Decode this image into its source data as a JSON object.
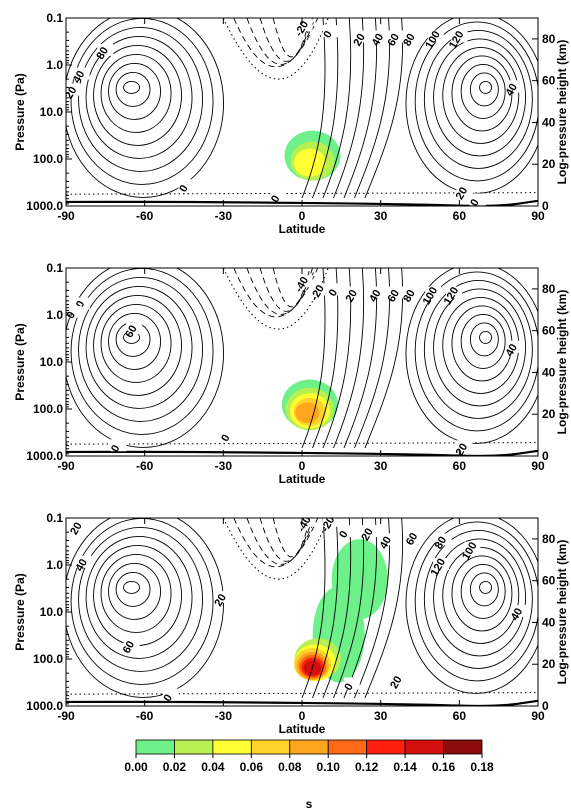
{
  "colors": {
    "contour": "#000000",
    "fill_levels": [
      "#6ef08a",
      "#b8f050",
      "#ffff33",
      "#ffd22a",
      "#ffa51e",
      "#ff6a14",
      "#ff2010",
      "#d40f0f",
      "#8c0b0b"
    ]
  },
  "chart_data": [
    {
      "type": "contour",
      "panel": 1,
      "xlabel": "Latitude",
      "ylabel_left": "Pressure (Pa)",
      "ylabel_right": "Log-pressure height (km)",
      "x_ticks": [
        "-90",
        "-60",
        "-30",
        "0",
        "30",
        "60",
        "90"
      ],
      "x_values": [
        -90,
        -60,
        -30,
        0,
        30,
        60,
        90
      ],
      "xlim": [
        -90,
        90
      ],
      "y_left_ticks": [
        "0.1",
        "1.0",
        "10.0",
        "100.0",
        "1000.0"
      ],
      "y_left_values": [
        0.1,
        1,
        10,
        100,
        1000
      ],
      "y_left_scale": "log",
      "y_right_ticks": [
        "0",
        "20",
        "40",
        "60",
        "80"
      ],
      "y_right_values": [
        0,
        20,
        40,
        60,
        80
      ],
      "contour_labels": [
        {
          "text": "80",
          "lat": -75,
          "p": 0.5
        },
        {
          "text": "40",
          "lat": -84,
          "p": 1.6
        },
        {
          "text": "20",
          "lat": -87,
          "p": 3.5
        },
        {
          "text": "-20",
          "lat": 1,
          "p": 0.15
        },
        {
          "text": "0",
          "lat": 11,
          "p": 0.2
        },
        {
          "text": "20",
          "lat": 23,
          "p": 0.26
        },
        {
          "text": "40",
          "lat": 30,
          "p": 0.26
        },
        {
          "text": "60",
          "lat": 36,
          "p": 0.26
        },
        {
          "text": "80",
          "lat": 42,
          "p": 0.26
        },
        {
          "text": "100",
          "lat": 51,
          "p": 0.26
        },
        {
          "text": "120",
          "lat": 60,
          "p": 0.26
        },
        {
          "text": "40",
          "lat": 81,
          "p": 3.0
        },
        {
          "text": "0",
          "lat": -44,
          "p": 380
        },
        {
          "text": "0",
          "lat": -9,
          "p": 630
        },
        {
          "text": "20",
          "lat": 62,
          "p": 480
        },
        {
          "text": "0",
          "lat": 67,
          "p": 760
        }
      ],
      "shading": [
        {
          "lat": 4,
          "p": 85,
          "level": 0.02
        },
        {
          "lat": 4,
          "p": 110,
          "level": 0.04
        },
        {
          "lat": 3,
          "p": 120,
          "level": 0.06
        }
      ]
    },
    {
      "type": "contour",
      "panel": 2,
      "xlabel": "Latitude",
      "ylabel_left": "Pressure (Pa)",
      "ylabel_right": "Log-pressure height (km)",
      "x_ticks": [
        "-90",
        "-60",
        "-30",
        "0",
        "30",
        "60",
        "90"
      ],
      "x_values": [
        -90,
        -60,
        -30,
        0,
        30,
        60,
        90
      ],
      "xlim": [
        -90,
        90
      ],
      "y_left_ticks": [
        "0.1",
        "1.0",
        "10.0",
        "100.0",
        "1000.0"
      ],
      "y_left_values": [
        0.1,
        1,
        10,
        100,
        1000
      ],
      "y_left_scale": "log",
      "y_right_ticks": [
        "0",
        "20",
        "40",
        "60",
        "80"
      ],
      "y_right_values": [
        0,
        20,
        40,
        60,
        80
      ],
      "contour_labels": [
        {
          "text": "20",
          "lat": -84,
          "p": 0.6
        },
        {
          "text": "0",
          "lat": -87,
          "p": 0.9
        },
        {
          "text": "60",
          "lat": -64,
          "p": 2.0
        },
        {
          "text": "-40",
          "lat": 1,
          "p": 0.2
        },
        {
          "text": "-20",
          "lat": 7,
          "p": 0.3
        },
        {
          "text": "0",
          "lat": 13,
          "p": 0.3
        },
        {
          "text": "20",
          "lat": 20,
          "p": 0.35
        },
        {
          "text": "40",
          "lat": 29,
          "p": 0.35
        },
        {
          "text": "60",
          "lat": 36,
          "p": 0.35
        },
        {
          "text": "80",
          "lat": 42,
          "p": 0.35
        },
        {
          "text": "100",
          "lat": 50,
          "p": 0.35
        },
        {
          "text": "120",
          "lat": 58,
          "p": 0.35
        },
        {
          "text": "40",
          "lat": 81,
          "p": 5.0
        },
        {
          "text": "0",
          "lat": -70,
          "p": 620
        },
        {
          "text": "0",
          "lat": -28,
          "p": 370
        },
        {
          "text": "20",
          "lat": 62,
          "p": 650
        }
      ],
      "shading": [
        {
          "lat": 3,
          "p": 80,
          "level": 0.02
        },
        {
          "lat": 3,
          "p": 100,
          "level": 0.04
        },
        {
          "lat": 3,
          "p": 110,
          "level": 0.06
        },
        {
          "lat": 3,
          "p": 115,
          "level": 0.08
        },
        {
          "lat": 2,
          "p": 120,
          "level": 0.1
        }
      ]
    },
    {
      "type": "contour",
      "panel": 3,
      "xlabel": "Latitude",
      "ylabel_left": "Pressure (Pa)",
      "ylabel_right": "Log-pressure height (km)",
      "x_ticks": [
        "-90",
        "-60",
        "-30",
        "0",
        "30",
        "60",
        "90"
      ],
      "x_values": [
        -90,
        -60,
        -30,
        0,
        30,
        60,
        90
      ],
      "xlim": [
        -90,
        90
      ],
      "y_left_ticks": [
        "0.1",
        "1.0",
        "10.0",
        "100.0",
        "1000.0"
      ],
      "y_left_values": [
        0.1,
        1,
        10,
        100,
        1000
      ],
      "y_left_scale": "log",
      "y_right_ticks": [
        "0",
        "20",
        "40",
        "60",
        "80"
      ],
      "y_right_values": [
        0,
        20,
        40,
        60,
        80
      ],
      "contour_labels": [
        {
          "text": "20",
          "lat": -85,
          "p": 0.15
        },
        {
          "text": "40",
          "lat": -83,
          "p": 0.9
        },
        {
          "text": "60",
          "lat": -65,
          "p": 50
        },
        {
          "text": "20",
          "lat": -30,
          "p": 5
        },
        {
          "text": "-40",
          "lat": 2,
          "p": 0.12
        },
        {
          "text": "-20",
          "lat": 11,
          "p": 0.12
        },
        {
          "text": "0",
          "lat": 17,
          "p": 0.2
        },
        {
          "text": "20",
          "lat": 26,
          "p": 0.2
        },
        {
          "text": "40",
          "lat": 33,
          "p": 0.3
        },
        {
          "text": "60",
          "lat": 43,
          "p": 0.25
        },
        {
          "text": "80",
          "lat": 54,
          "p": 0.3
        },
        {
          "text": "100",
          "lat": 65,
          "p": 0.45
        },
        {
          "text": "120",
          "lat": 53,
          "p": 1.0
        },
        {
          "text": "40",
          "lat": 83,
          "p": 10
        },
        {
          "text": "0",
          "lat": 19,
          "p": 350
        },
        {
          "text": "20",
          "lat": 37,
          "p": 280
        },
        {
          "text": "0",
          "lat": -50,
          "p": 600
        }
      ],
      "shading": [
        {
          "lat": 22,
          "p": 2,
          "level": 0.02
        },
        {
          "lat": 14,
          "p": 30,
          "level": 0.02
        },
        {
          "lat": 6,
          "p": 100,
          "level": 0.04
        },
        {
          "lat": 5,
          "p": 120,
          "level": 0.06
        },
        {
          "lat": 4,
          "p": 130,
          "level": 0.08
        },
        {
          "lat": 4,
          "p": 140,
          "level": 0.1
        },
        {
          "lat": 4,
          "p": 145,
          "level": 0.12
        },
        {
          "lat": 4,
          "p": 150,
          "level": 0.14
        },
        {
          "lat": 4,
          "p": 155,
          "level": 0.16
        }
      ]
    }
  ],
  "colorbar": {
    "levels": [
      0.0,
      0.02,
      0.04,
      0.06,
      0.08,
      0.1,
      0.12,
      0.14,
      0.16,
      0.18
    ],
    "tick_labels": [
      "0.00",
      "0.02",
      "0.04",
      "0.06",
      "0.08",
      "0.10",
      "0.12",
      "0.14",
      "0.16",
      "0.18"
    ],
    "unit_label": "s"
  }
}
